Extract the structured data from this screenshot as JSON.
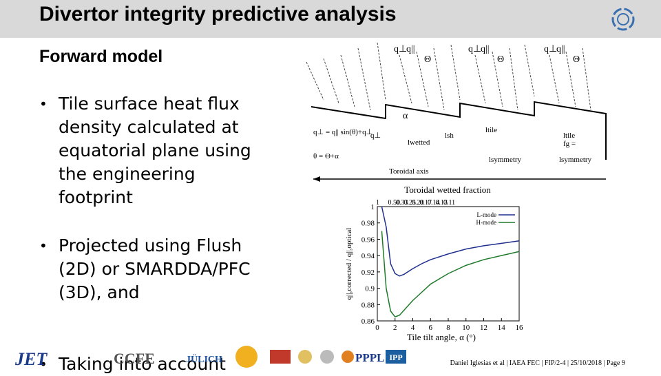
{
  "header": {
    "title": "Divertor integrity predictive analysis"
  },
  "section": {
    "title": "Forward model"
  },
  "bullets": [
    "Tile surface heat flux density calculated at equatorial plane using the engineering footprint",
    "Projected using Flush (2D) or SMARDDA/PFC (3D), and",
    "Taking into account"
  ],
  "diagram": {
    "labels": [
      "q⊥",
      "q||",
      "Θ",
      "q⊥",
      "q||",
      "Θ",
      "q⊥",
      "q||",
      "Θ",
      "α",
      "q⊥ = q|| sin(θ)+q⊥",
      "θ = Θ+α",
      "q⊥",
      "lwetted",
      "lsh",
      "ltile",
      "lsymmetry",
      "fg =",
      "ltile",
      "lsymmetry",
      "Toroidal axis"
    ]
  },
  "chart_data": {
    "type": "line",
    "top_axis_title": "Toroidal wetted fraction",
    "top_axis_labels": [
      "1",
      "0.50",
      "0.33",
      "0.25",
      "0.20",
      "0.17",
      "0.14",
      "0.13",
      "0.11"
    ],
    "x_label": "Tile tilt angle, α (°)",
    "y_label": "q||,corrected / q||,optical",
    "x": [
      0.5,
      1,
      1.5,
      2,
      2.5,
      3,
      4,
      5,
      6,
      8,
      10,
      12,
      14,
      16
    ],
    "series": [
      {
        "name": "L-mode",
        "color": "#1f2f8f",
        "values": [
          1.0,
          0.975,
          0.93,
          0.918,
          0.915,
          0.917,
          0.924,
          0.93,
          0.935,
          0.942,
          0.948,
          0.952,
          0.955,
          0.958
        ]
      },
      {
        "name": "H-mode",
        "color": "#1f7a2a",
        "values": [
          0.97,
          0.9,
          0.872,
          0.865,
          0.867,
          0.873,
          0.885,
          0.895,
          0.905,
          0.918,
          0.928,
          0.935,
          0.94,
          0.945
        ]
      }
    ],
    "xlim": [
      0,
      16
    ],
    "xticks": [
      0,
      2,
      4,
      6,
      8,
      10,
      12,
      14,
      16
    ],
    "ylim": [
      0.86,
      1
    ],
    "yticks": [
      0.86,
      0.88,
      0.9,
      0.92,
      0.94,
      0.96,
      0.98,
      1
    ],
    "legend": "upper right"
  },
  "footer": {
    "citation": "Daniel Iglesias et al | IAEA FEC | FIP/2-4 | 25/10/2018 | Page 9",
    "logos": [
      "JET",
      "CCFE",
      "JÜLICH",
      "PPPL",
      "IPP"
    ]
  }
}
